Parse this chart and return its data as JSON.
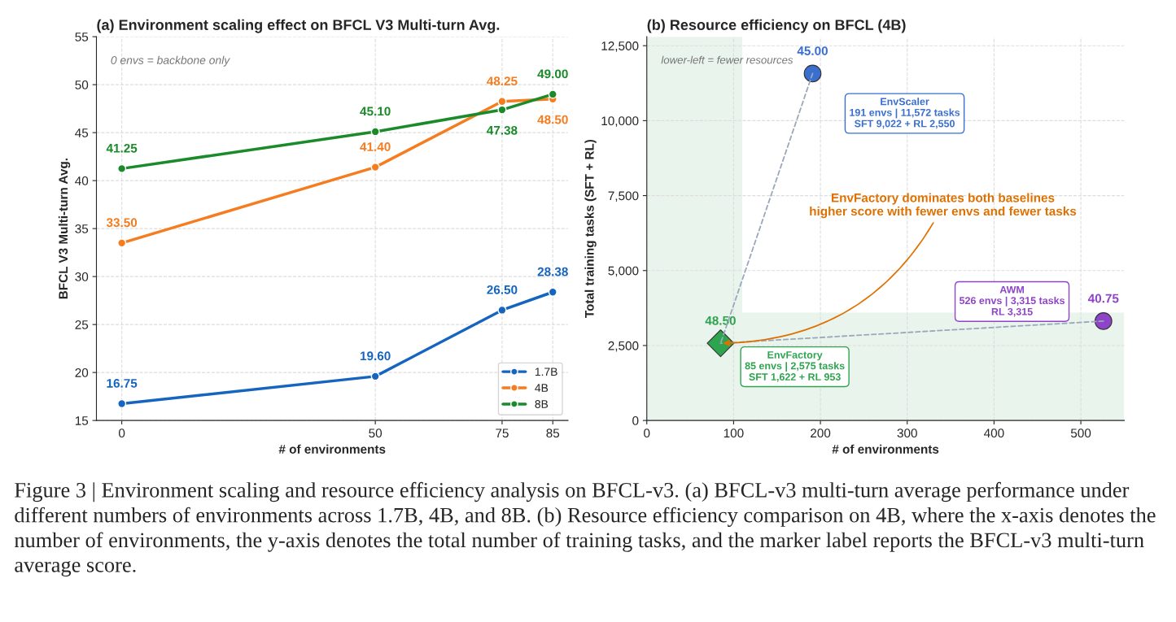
{
  "chart_data": [
    {
      "type": "line",
      "title": "(a) Environment scaling effect on BFCL V3 Multi-turn Avg.",
      "xlabel": "# of environments",
      "ylabel": "BFCL V3 Multi-turn Avg.",
      "x": [
        0,
        50,
        75,
        85
      ],
      "xlim": [
        -5,
        88
      ],
      "xticks": [
        0,
        50,
        75,
        85
      ],
      "ylim": [
        15,
        55
      ],
      "yticks": [
        15,
        20,
        25,
        30,
        35,
        40,
        45,
        50,
        55
      ],
      "series": [
        {
          "name": "1.7B",
          "color": "#1565c0",
          "values": [
            16.75,
            19.6,
            26.5,
            28.38
          ],
          "value_labels": [
            "16.75",
            "19.60",
            "26.50",
            "28.38"
          ]
        },
        {
          "name": "4B",
          "color": "#f57c1f",
          "values": [
            33.5,
            41.4,
            48.25,
            48.5
          ],
          "value_labels": [
            "33.50",
            "41.40",
            "48.25",
            "48.50"
          ]
        },
        {
          "name": "8B",
          "color": "#1a8a2a",
          "values": [
            41.25,
            45.1,
            47.38,
            49.0
          ],
          "value_labels": [
            "41.25",
            "45.10",
            "47.38",
            "49.00"
          ]
        }
      ],
      "marker": "circle",
      "line_style": "solid",
      "grid": true,
      "legend": "bottom right",
      "annotations": [
        "0 envs = backbone only"
      ]
    },
    {
      "type": "scatter",
      "title": "(b) Resource efficiency on BFCL (4B)",
      "xlabel": "# of environments",
      "ylabel": "Total training tasks (SFT + RL)",
      "xlim": [
        0,
        550
      ],
      "xticks": [
        0,
        100,
        200,
        300,
        400,
        500
      ],
      "ylim": [
        0,
        12800
      ],
      "yticks": [
        0,
        {
          "value": 2500,
          "label": "2,500"
        },
        {
          "value": 5000,
          "label": "5,000"
        },
        {
          "value": 7500,
          "label": "7,500"
        },
        {
          "value": 10000,
          "label": "10,000"
        },
        {
          "value": 12500,
          "label": "12,500"
        }
      ],
      "series": [
        {
          "x": [
            191
          ],
          "values": [
            11572
          ],
          "color": "#3a6fd0",
          "marker": "circle"
        },
        {
          "x": [
            526
          ],
          "values": [
            3315
          ],
          "color": "#8e44c8",
          "marker": "circle"
        },
        {
          "x": [
            85
          ],
          "values": [
            2575
          ],
          "color": "#2ea44f",
          "marker": "diamond"
        },
        {
          "type": "line",
          "x": [
            191,
            85
          ],
          "values": [
            11572,
            2575
          ],
          "color": "#9aa8bb",
          "line_style": "dashed",
          "marker": "none"
        },
        {
          "type": "line",
          "x": [
            526,
            85
          ],
          "values": [
            3315,
            2575
          ],
          "color": "#9aa8bb",
          "line_style": "dashed",
          "marker": "none"
        }
      ],
      "grid": true,
      "bands": [
        {
          "axis": "x",
          "from": 0,
          "to": 110,
          "color": "#e8f4ec"
        },
        {
          "axis": "y",
          "from": 0,
          "to": 3600,
          "color": "#e8f4ec"
        }
      ],
      "annotations": [
        {
          "text": "45.00",
          "x": 191,
          "y": 11572
        },
        {
          "text": "40.75",
          "x": 526,
          "y": 3315
        },
        {
          "text": "48.50",
          "x": 85,
          "y": 2575
        },
        "EnvScaler\n191 envs | 11,572 tasks\nSFT 9,022 + RL 2,550",
        "AWM\n526 envs | 3,315 tasks\nRL 3,315",
        "EnvFactory\n85 envs | 2,575 tasks\nSFT 1,622 + RL 953",
        {
          "text": "EnvFactory dominates both baselines\nhigher score with fewer envs and fewer tasks",
          "x": 85,
          "y": 2575
        },
        "lower-left = fewer resources"
      ]
    },
    {
      "type": "other",
      "annotations": [
        "Figure 3 | Environment scaling and resource efficiency analysis on BFCL-v3. (a) BFCL-v3 multi-turn average performance under different numbers of environments across 1.7B, 4B, and 8B. (b) Resource efficiency comparison on 4B, where the x-axis denotes the number of environments, the y-axis denotes the total number of training tasks, and the marker label reports the BFCL-v3 multi-turn average score."
      ]
    }
  ]
}
